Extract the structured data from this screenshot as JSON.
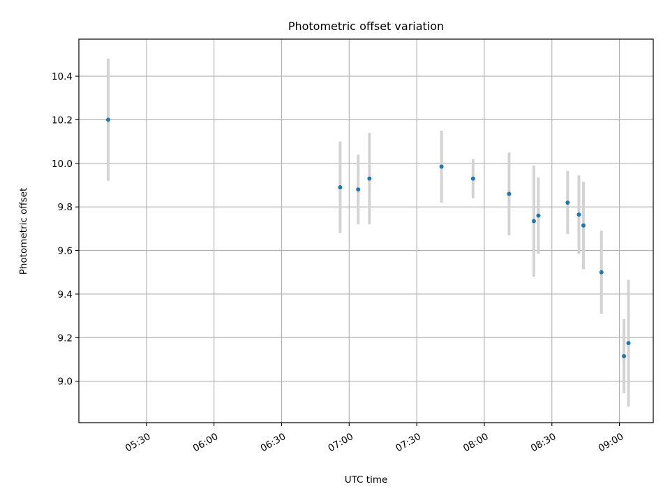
{
  "chart_data": {
    "type": "scatter",
    "title": "Photometric offset variation",
    "xlabel": "UTC time",
    "ylabel": "Photometric offset",
    "x_tick_labels": [
      "05:30",
      "06:00",
      "06:30",
      "07:00",
      "07:30",
      "08:00",
      "08:30",
      "09:00"
    ],
    "x_ticks": [
      "05:30",
      "06:00",
      "06:30",
      "07:00",
      "07:30",
      "08:00",
      "08:30",
      "09:00"
    ],
    "xlim": [
      "05:00",
      "09:15"
    ],
    "y_ticks": [
      9.0,
      9.2,
      9.4,
      9.6,
      9.8,
      10.0,
      10.2,
      10.4
    ],
    "y_tick_labels": [
      "9.0",
      "9.2",
      "9.4",
      "9.6",
      "9.8",
      "10.0",
      "10.2",
      "10.4"
    ],
    "ylim": [
      8.81,
      10.57
    ],
    "grid": true,
    "colors": {
      "marker": "#1f77b4",
      "errorbar": "#d3d3d3",
      "grid": "#b0b0b0"
    },
    "points": [
      {
        "x": "05:13",
        "y": 10.2,
        "err": 0.28
      },
      {
        "x": "06:56",
        "y": 9.89,
        "err": 0.21
      },
      {
        "x": "07:04",
        "y": 9.88,
        "err": 0.16
      },
      {
        "x": "07:09",
        "y": 9.93,
        "err": 0.21
      },
      {
        "x": "07:41",
        "y": 9.985,
        "err": 0.165
      },
      {
        "x": "07:55",
        "y": 9.93,
        "err": 0.09
      },
      {
        "x": "08:11",
        "y": 9.86,
        "err": 0.19
      },
      {
        "x": "08:22",
        "y": 9.735,
        "err": 0.255
      },
      {
        "x": "08:24",
        "y": 9.76,
        "err": 0.175
      },
      {
        "x": "08:37",
        "y": 9.82,
        "err": 0.145
      },
      {
        "x": "08:42",
        "y": 9.765,
        "err": 0.18
      },
      {
        "x": "08:44",
        "y": 9.715,
        "err": 0.2
      },
      {
        "x": "08:52",
        "y": 9.5,
        "err": 0.19
      },
      {
        "x": "09:02",
        "y": 9.115,
        "err": 0.17
      },
      {
        "x": "09:04",
        "y": 9.175,
        "err": 0.29
      }
    ]
  }
}
